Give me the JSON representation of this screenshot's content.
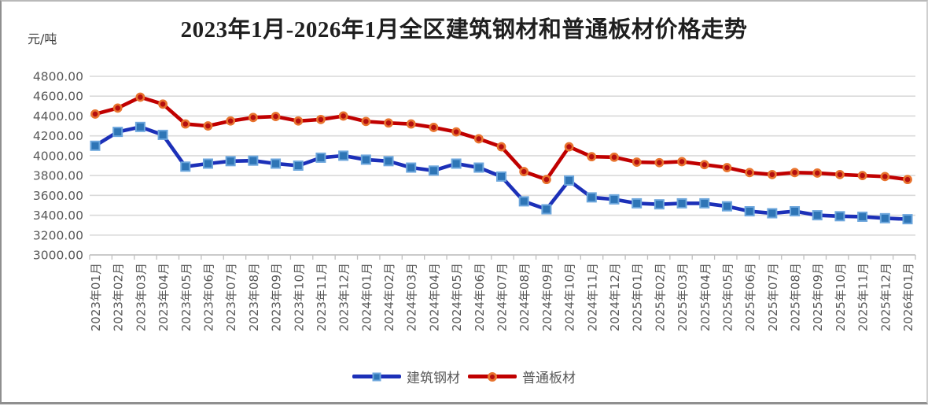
{
  "page": {
    "unit_label": "元/吨"
  },
  "chart_data": {
    "type": "line",
    "title": "2023年1月-2026年1月全区建筑钢材和普通板材价格走势",
    "ylabel": "元/吨",
    "xlabel": "",
    "ylim": [
      3000,
      4800
    ],
    "y_tick_step": 200,
    "y_tick_labels": [
      "3000.00",
      "3200.00",
      "3400.00",
      "3600.00",
      "3800.00",
      "4000.00",
      "4200.00",
      "4400.00",
      "4600.00",
      "4800.00"
    ],
    "grid": true,
    "legend_position": "bottom",
    "categories": [
      "2023年01月",
      "2023年02月",
      "2023年03月",
      "2023年04月",
      "2023年05月",
      "2023年06月",
      "2023年07月",
      "2023年08月",
      "2023年09月",
      "2023年10月",
      "2023年11月",
      "2023年12月",
      "2024年01月",
      "2024年02月",
      "2024年03月",
      "2024年04月",
      "2024年05月",
      "2024年06月",
      "2024年07月",
      "2024年08月",
      "2024年09月",
      "2024年10月",
      "2024年11月",
      "2024年12月",
      "2025年01月",
      "2025年02月",
      "2025年03月",
      "2025年04月",
      "2025年05月",
      "2025年06月",
      "2025年07月",
      "2025年08月",
      "2025年09月",
      "2025年10月",
      "2025年11月",
      "2025年12月",
      "2026年01月"
    ],
    "series": [
      {
        "name": "建筑钢材",
        "marker": "square",
        "line_color": "#1c30b8",
        "marker_fill": "#2e75b6",
        "marker_edge": "#6ca6dc",
        "values": [
          4100,
          4240,
          4290,
          4210,
          3890,
          3920,
          3945,
          3950,
          3920,
          3900,
          3980,
          4000,
          3960,
          3945,
          3880,
          3850,
          3920,
          3880,
          3790,
          3540,
          3460,
          3750,
          3580,
          3560,
          3520,
          3510,
          3520,
          3520,
          3490,
          3440,
          3420,
          3440,
          3400,
          3390,
          3385,
          3370,
          3360
        ]
      },
      {
        "name": "普通板材",
        "marker": "circle",
        "line_color": "#c00000",
        "marker_fill": "#b50f0f",
        "marker_edge": "#e8732e",
        "values": [
          4420,
          4480,
          4590,
          4520,
          4320,
          4300,
          4350,
          4385,
          4395,
          4350,
          4365,
          4400,
          4345,
          4330,
          4320,
          4285,
          4240,
          4170,
          4090,
          3840,
          3760,
          4090,
          3990,
          3985,
          3935,
          3930,
          3940,
          3910,
          3880,
          3830,
          3810,
          3830,
          3825,
          3810,
          3800,
          3790,
          3760
        ]
      }
    ],
    "style": {
      "gridline_color": "#d9d9d9",
      "axis_color": "#bfbfbf",
      "tick_label_color": "#595959"
    }
  }
}
